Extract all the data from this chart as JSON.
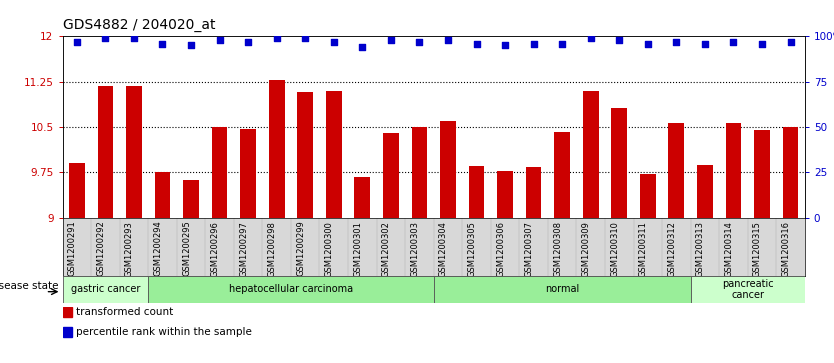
{
  "title": "GDS4882 / 204020_at",
  "categories": [
    "GSM1200291",
    "GSM1200292",
    "GSM1200293",
    "GSM1200294",
    "GSM1200295",
    "GSM1200296",
    "GSM1200297",
    "GSM1200298",
    "GSM1200299",
    "GSM1200300",
    "GSM1200301",
    "GSM1200302",
    "GSM1200303",
    "GSM1200304",
    "GSM1200305",
    "GSM1200306",
    "GSM1200307",
    "GSM1200308",
    "GSM1200309",
    "GSM1200310",
    "GSM1200311",
    "GSM1200312",
    "GSM1200313",
    "GSM1200314",
    "GSM1200315",
    "GSM1200316"
  ],
  "bar_values": [
    9.9,
    11.18,
    11.18,
    9.75,
    9.62,
    10.5,
    10.47,
    11.28,
    11.08,
    11.1,
    9.68,
    10.4,
    10.5,
    10.6,
    9.85,
    9.78,
    9.84,
    10.42,
    11.1,
    10.82,
    9.72,
    10.57,
    9.87,
    10.57,
    10.45,
    10.5
  ],
  "percentile_values": [
    97,
    99,
    99,
    96,
    95,
    98,
    97,
    99,
    99,
    97,
    94,
    98,
    97,
    98,
    96,
    95,
    96,
    96,
    99,
    98,
    96,
    97,
    96,
    97,
    96,
    97
  ],
  "bar_color": "#cc0000",
  "percentile_color": "#0000cc",
  "ylim_left": [
    9.0,
    12.0
  ],
  "ylim_right": [
    0,
    100
  ],
  "yticks_left": [
    9.0,
    9.75,
    10.5,
    11.25,
    12.0
  ],
  "ytick_labels_left": [
    "9",
    "9.75",
    "10.5",
    "11.25",
    "12"
  ],
  "yticks_right": [
    0,
    25,
    50,
    75,
    100
  ],
  "ytick_labels_right": [
    "0",
    "25",
    "50",
    "75",
    "100%"
  ],
  "hlines": [
    9.75,
    10.5,
    11.25
  ],
  "disease_groups": [
    {
      "label": "gastric cancer",
      "start": 0,
      "end": 3,
      "color": "#ccffcc"
    },
    {
      "label": "hepatocellular carcinoma",
      "start": 3,
      "end": 13,
      "color": "#99ee99"
    },
    {
      "label": "normal",
      "start": 13,
      "end": 22,
      "color": "#99ee99"
    },
    {
      "label": "pancreatic\ncancer",
      "start": 22,
      "end": 26,
      "color": "#ccffcc"
    }
  ],
  "legend_items": [
    {
      "label": "transformed count",
      "color": "#cc0000"
    },
    {
      "label": "percentile rank within the sample",
      "color": "#0000cc"
    }
  ],
  "plot_bg": "#ffffff",
  "disease_state_label": "disease state",
  "title_fontsize": 10,
  "tick_fontsize": 7.5,
  "xtick_fontsize": 6.0,
  "bar_width": 0.55
}
